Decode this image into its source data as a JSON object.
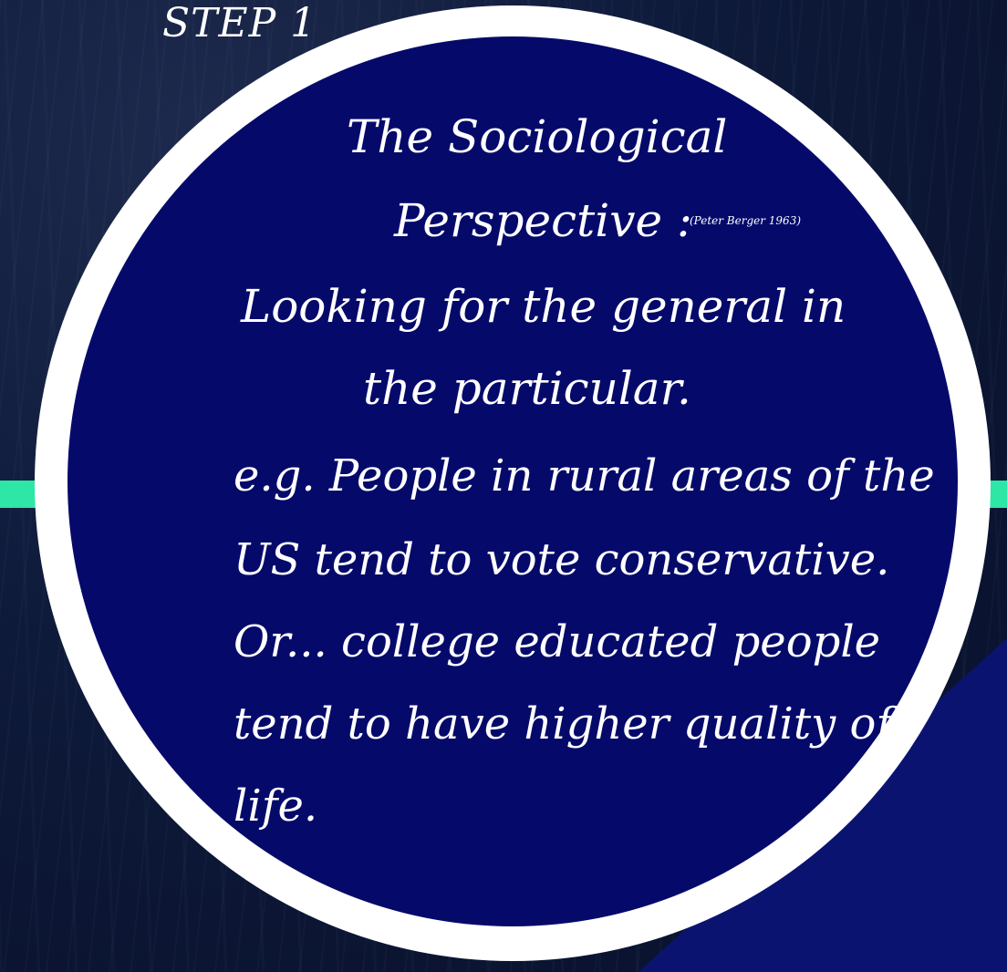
{
  "slide": {
    "step_label": "STEP 1",
    "heading_line1": "The Sociological",
    "heading_line2": "Perspective :",
    "citation": "(Peter Berger 1963)",
    "definition_line1": "Looking for the general in",
    "definition_line2": "the particular.",
    "example_lines": [
      "e.g. People in rural areas of the",
      "US tend to vote conservative.",
      "Or... college educated people",
      "tend to have higher quality of",
      "life."
    ]
  },
  "colors": {
    "disc": "#050a6a",
    "ring": "#ffffff",
    "accent": "#2ee6a6",
    "background": "#0b1430",
    "text": "#ffffff"
  }
}
